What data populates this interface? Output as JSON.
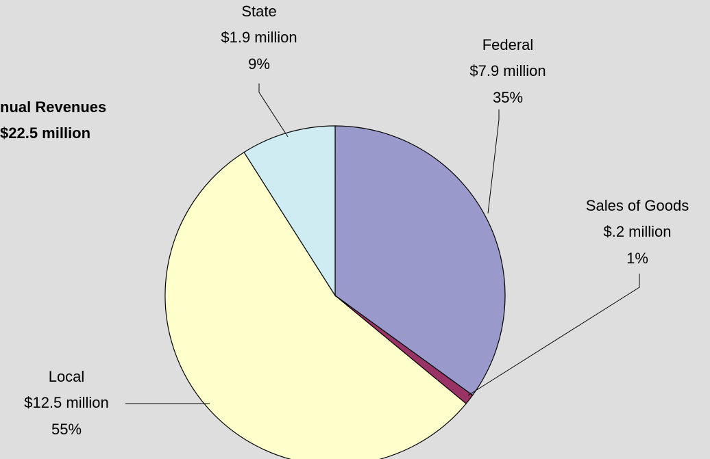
{
  "chart_data": {
    "type": "pie",
    "title": [
      "nual Revenues",
      "$22.5 million"
    ],
    "categories": [
      "Federal",
      "Sales of Goods",
      "Local",
      "State"
    ],
    "values": [
      35,
      1,
      55,
      9
    ],
    "value_labels": [
      "35%",
      "1%",
      "55%",
      "9%"
    ],
    "amount_labels": [
      "$7.9 million",
      "$.2 million",
      "$12.5 million",
      "$1.9 million"
    ],
    "colors": [
      "#9999cc",
      "#993366",
      "#ffffcc",
      "#cfecf2"
    ]
  }
}
